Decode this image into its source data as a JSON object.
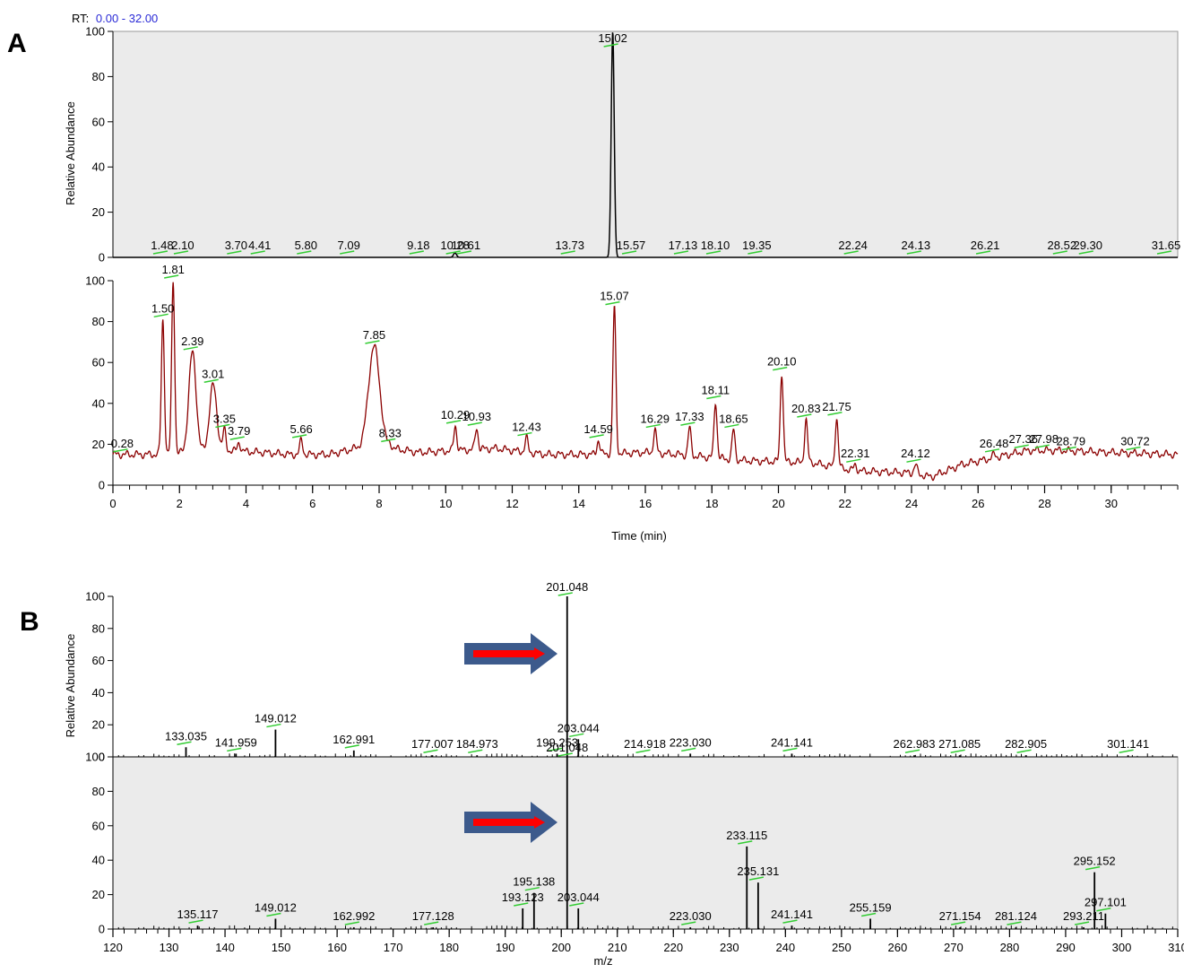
{
  "panels": {
    "a": "A",
    "b": "B"
  },
  "rt_range": {
    "prefix": "RT:",
    "value": "0.00 - 32.00"
  },
  "colors": {
    "tic": "#8b0000",
    "eic": "#000000",
    "marker": "#33cc33",
    "arrow_body": "#3c5a8c",
    "arrow_core": "#ff0000",
    "panel_bg": "#ebebeb"
  },
  "chart_data": [
    {
      "id": "A-top",
      "type": "line",
      "description_role": "extracted ion chromatogram",
      "ylabel": "Relative Abundance",
      "xlim": [
        0,
        32
      ],
      "ylim": [
        0,
        100
      ],
      "yticks": [
        0,
        20,
        40,
        60,
        80,
        100
      ],
      "peaks": [
        {
          "x": 1.48,
          "y": 0,
          "label": "1.48"
        },
        {
          "x": 2.1,
          "y": 0,
          "label": "2.10"
        },
        {
          "x": 3.7,
          "y": 0,
          "label": "3.70"
        },
        {
          "x": 4.41,
          "y": 0,
          "label": "4.41"
        },
        {
          "x": 5.8,
          "y": 0,
          "label": "5.80"
        },
        {
          "x": 7.09,
          "y": 0,
          "label": "7.09"
        },
        {
          "x": 9.18,
          "y": 0,
          "label": "9.18"
        },
        {
          "x": 10.28,
          "y": 2,
          "label": "10.28"
        },
        {
          "x": 10.61,
          "y": 0,
          "label": "10.61"
        },
        {
          "x": 13.73,
          "y": 0,
          "label": "13.73"
        },
        {
          "x": 15.02,
          "y": 100,
          "label": "15.02"
        },
        {
          "x": 15.57,
          "y": 0,
          "label": "15.57"
        },
        {
          "x": 17.13,
          "y": 0,
          "label": "17.13"
        },
        {
          "x": 18.1,
          "y": 0,
          "label": "18.10"
        },
        {
          "x": 19.35,
          "y": 0,
          "label": "19.35"
        },
        {
          "x": 22.24,
          "y": 0,
          "label": "22.24"
        },
        {
          "x": 24.13,
          "y": 0,
          "label": "24.13"
        },
        {
          "x": 26.21,
          "y": 0,
          "label": "26.21"
        },
        {
          "x": 28.52,
          "y": 0,
          "label": "28.52"
        },
        {
          "x": 29.3,
          "y": 0,
          "label": "29.30"
        },
        {
          "x": 31.65,
          "y": 0,
          "label": "31.65"
        }
      ]
    },
    {
      "id": "A-bottom",
      "type": "line",
      "description_role": "total ion chromatogram",
      "xlabel": "Time (min)",
      "xlim": [
        0,
        32
      ],
      "ylim": [
        0,
        100
      ],
      "xticks": [
        0,
        2,
        4,
        6,
        8,
        10,
        12,
        14,
        16,
        18,
        20,
        22,
        24,
        26,
        28,
        30
      ],
      "yticks": [
        0,
        20,
        40,
        60,
        80,
        100
      ],
      "baseline": [
        [
          0,
          15
        ],
        [
          1.3,
          15
        ],
        [
          3.4,
          17
        ],
        [
          4.5,
          16
        ],
        [
          5.3,
          15
        ],
        [
          6.5,
          15
        ],
        [
          7.3,
          18
        ],
        [
          8.4,
          18
        ],
        [
          9.2,
          16
        ],
        [
          11.5,
          18
        ],
        [
          13,
          15
        ],
        [
          14.3,
          15
        ],
        [
          16,
          16
        ],
        [
          17,
          15
        ],
        [
          19,
          12
        ],
        [
          21,
          11
        ],
        [
          22.3,
          7
        ],
        [
          24,
          6
        ],
        [
          24.6,
          4
        ],
        [
          25.5,
          10
        ],
        [
          27.5,
          17
        ],
        [
          28.5,
          17
        ],
        [
          30,
          16
        ],
        [
          31.9,
          15
        ]
      ],
      "peaks": [
        {
          "x": 0.28,
          "y": 15,
          "label": "0.28"
        },
        {
          "x": 1.5,
          "y": 81,
          "label": "1.50"
        },
        {
          "x": 1.81,
          "y": 100,
          "label": "1.81"
        },
        {
          "x": 2.39,
          "y": 65,
          "label": "2.39"
        },
        {
          "x": 3.01,
          "y": 49,
          "label": "3.01"
        },
        {
          "x": 3.35,
          "y": 27,
          "label": "3.35"
        },
        {
          "x": 3.79,
          "y": 21,
          "label": "3.79"
        },
        {
          "x": 5.66,
          "y": 22,
          "label": "5.66"
        },
        {
          "x": 7.85,
          "y": 68,
          "label": "7.85"
        },
        {
          "x": 8.33,
          "y": 20,
          "label": "8.33"
        },
        {
          "x": 10.29,
          "y": 29,
          "label": "10.29"
        },
        {
          "x": 10.93,
          "y": 28,
          "label": "10.93"
        },
        {
          "x": 12.43,
          "y": 23,
          "label": "12.43"
        },
        {
          "x": 14.59,
          "y": 22,
          "label": "14.59"
        },
        {
          "x": 15.07,
          "y": 87,
          "label": "15.07"
        },
        {
          "x": 16.29,
          "y": 27,
          "label": "16.29"
        },
        {
          "x": 17.33,
          "y": 28,
          "label": "17.33"
        },
        {
          "x": 18.11,
          "y": 41,
          "label": "18.11"
        },
        {
          "x": 18.65,
          "y": 27,
          "label": "18.65"
        },
        {
          "x": 20.1,
          "y": 55,
          "label": "20.10"
        },
        {
          "x": 20.83,
          "y": 32,
          "label": "20.83"
        },
        {
          "x": 21.75,
          "y": 33,
          "label": "21.75"
        },
        {
          "x": 22.31,
          "y": 10,
          "label": "22.31"
        },
        {
          "x": 24.12,
          "y": 10,
          "label": "24.12"
        },
        {
          "x": 26.48,
          "y": 15,
          "label": "26.48"
        },
        {
          "x": 27.36,
          "y": 17,
          "label": "27.36"
        },
        {
          "x": 27.98,
          "y": 17,
          "label": "27.98"
        },
        {
          "x": 28.79,
          "y": 16,
          "label": "28.79"
        },
        {
          "x": 30.72,
          "y": 16,
          "label": "30.72"
        }
      ]
    },
    {
      "id": "B-top",
      "type": "bar",
      "description_role": "mass spectrum",
      "ylabel": "Relative Abundance",
      "xlim": [
        120,
        310
      ],
      "ylim": [
        0,
        100
      ],
      "yticks": [
        0,
        20,
        40,
        60,
        80,
        100
      ],
      "peaks": [
        {
          "x": 133.035,
          "y": 6,
          "label": "133.035"
        },
        {
          "x": 141.959,
          "y": 2,
          "label": "141.959"
        },
        {
          "x": 149.012,
          "y": 17,
          "label": "149.012"
        },
        {
          "x": 162.991,
          "y": 4,
          "label": "162.991"
        },
        {
          "x": 177.007,
          "y": 1,
          "label": "177.007"
        },
        {
          "x": 184.973,
          "y": 1,
          "label": "184.973"
        },
        {
          "x": 199.253,
          "y": 2,
          "label": "199.253"
        },
        {
          "x": 201.048,
          "y": 100,
          "label": "201.048"
        },
        {
          "x": 203.044,
          "y": 11,
          "label": "203.044"
        },
        {
          "x": 214.918,
          "y": 1,
          "label": "214.918"
        },
        {
          "x": 223.03,
          "y": 2,
          "label": "223.030"
        },
        {
          "x": 241.141,
          "y": 2,
          "label": "241.141"
        },
        {
          "x": 262.983,
          "y": 1,
          "label": "262.983"
        },
        {
          "x": 271.085,
          "y": 1,
          "label": "271.085"
        },
        {
          "x": 282.905,
          "y": 1,
          "label": "282.905"
        },
        {
          "x": 301.141,
          "y": 1,
          "label": "301.141"
        }
      ]
    },
    {
      "id": "B-bottom",
      "type": "bar",
      "description_role": "mass spectrum",
      "xlabel": "m/z",
      "xlim": [
        120,
        310
      ],
      "ylim": [
        0,
        100
      ],
      "xticks": [
        120,
        130,
        140,
        150,
        160,
        170,
        180,
        190,
        200,
        210,
        220,
        230,
        240,
        250,
        260,
        270,
        280,
        290,
        300,
        310
      ],
      "yticks": [
        0,
        20,
        40,
        60,
        80,
        100
      ],
      "peaks": [
        {
          "x": 135.117,
          "y": 2,
          "label": "135.117"
        },
        {
          "x": 149.012,
          "y": 6,
          "label": "149.012"
        },
        {
          "x": 162.992,
          "y": 1,
          "label": "162.992"
        },
        {
          "x": 177.128,
          "y": 1,
          "label": "177.128"
        },
        {
          "x": 193.123,
          "y": 12,
          "label": "193.123"
        },
        {
          "x": 195.138,
          "y": 21,
          "label": "195.138"
        },
        {
          "x": 201.048,
          "y": 100,
          "label": "201.048"
        },
        {
          "x": 203.044,
          "y": 12,
          "label": "203.044"
        },
        {
          "x": 223.03,
          "y": 1,
          "label": "223.030"
        },
        {
          "x": 233.115,
          "y": 48,
          "label": "233.115"
        },
        {
          "x": 235.131,
          "y": 27,
          "label": "235.131"
        },
        {
          "x": 241.141,
          "y": 2,
          "label": "241.141"
        },
        {
          "x": 255.159,
          "y": 6,
          "label": "255.159"
        },
        {
          "x": 271.154,
          "y": 1,
          "label": "271.154"
        },
        {
          "x": 281.124,
          "y": 1,
          "label": "281.124"
        },
        {
          "x": 293.211,
          "y": 1,
          "label": "293.211"
        },
        {
          "x": 295.152,
          "y": 33,
          "label": "295.152"
        },
        {
          "x": 297.101,
          "y": 9,
          "label": "297.101"
        }
      ]
    }
  ]
}
